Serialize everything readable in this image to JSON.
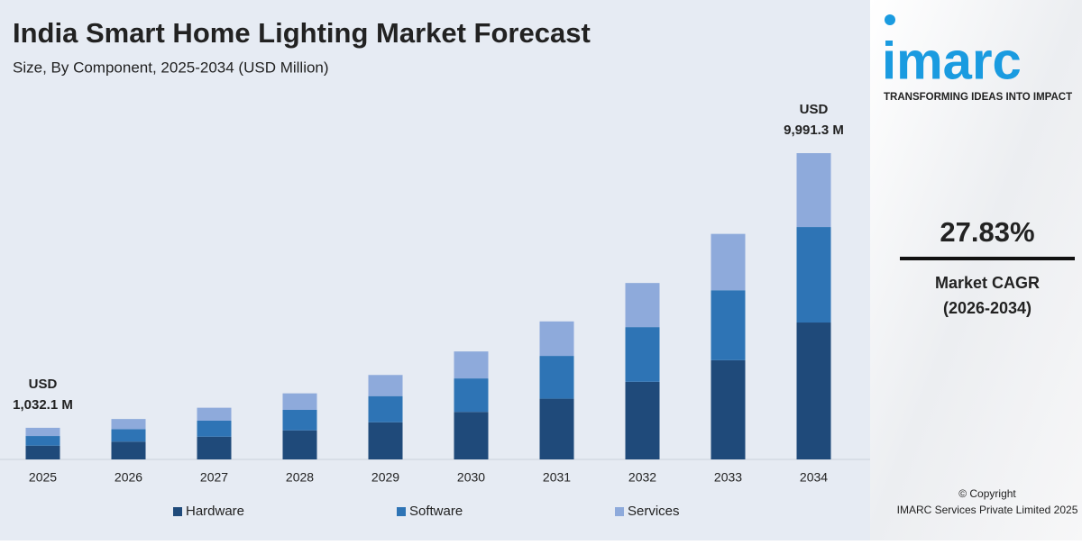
{
  "chart_data": {
    "type": "stacked-bar",
    "title": "India Smart Home Lighting Market Forecast",
    "subtitle": "Size, By Component, 2025-2034 (USD Million)",
    "categories": [
      "2025",
      "2026",
      "2027",
      "2028",
      "2029",
      "2030",
      "2031",
      "2032",
      "2033",
      "2034"
    ],
    "series": [
      {
        "name": "Hardware",
        "color": "#1f4a7a",
        "values": [
          449,
          580,
          742,
          948,
          1212,
          1550,
          1981,
          2532,
          3237,
          4466
        ]
      },
      {
        "name": "Software",
        "color": "#2e74b5",
        "values": [
          314,
          409,
          523,
          668,
          854,
          1092,
          1396,
          1784,
          2281,
          3114
        ]
      },
      {
        "name": "Services",
        "color": "#8eaadb",
        "values": [
          269,
          330,
          421,
          539,
          689,
          880,
          1125,
          1439,
          1839,
          2411
        ]
      }
    ],
    "total_labels": {
      "2025": [
        "USD",
        "1,032.1 M"
      ],
      "2034": [
        "USD",
        "9,991.3 M"
      ]
    },
    "legend": "bottom"
  },
  "side_panel": {
    "logo": "imarc",
    "tagline": "TRANSFORMING IDEAS INTO IMPACT",
    "cagr": "27.83%",
    "cagr_label": "Market CAGR",
    "cagr_period": "(2026-2034)",
    "copyright": "© Copyright",
    "company": "IMARC Services Private Limited 2025"
  }
}
